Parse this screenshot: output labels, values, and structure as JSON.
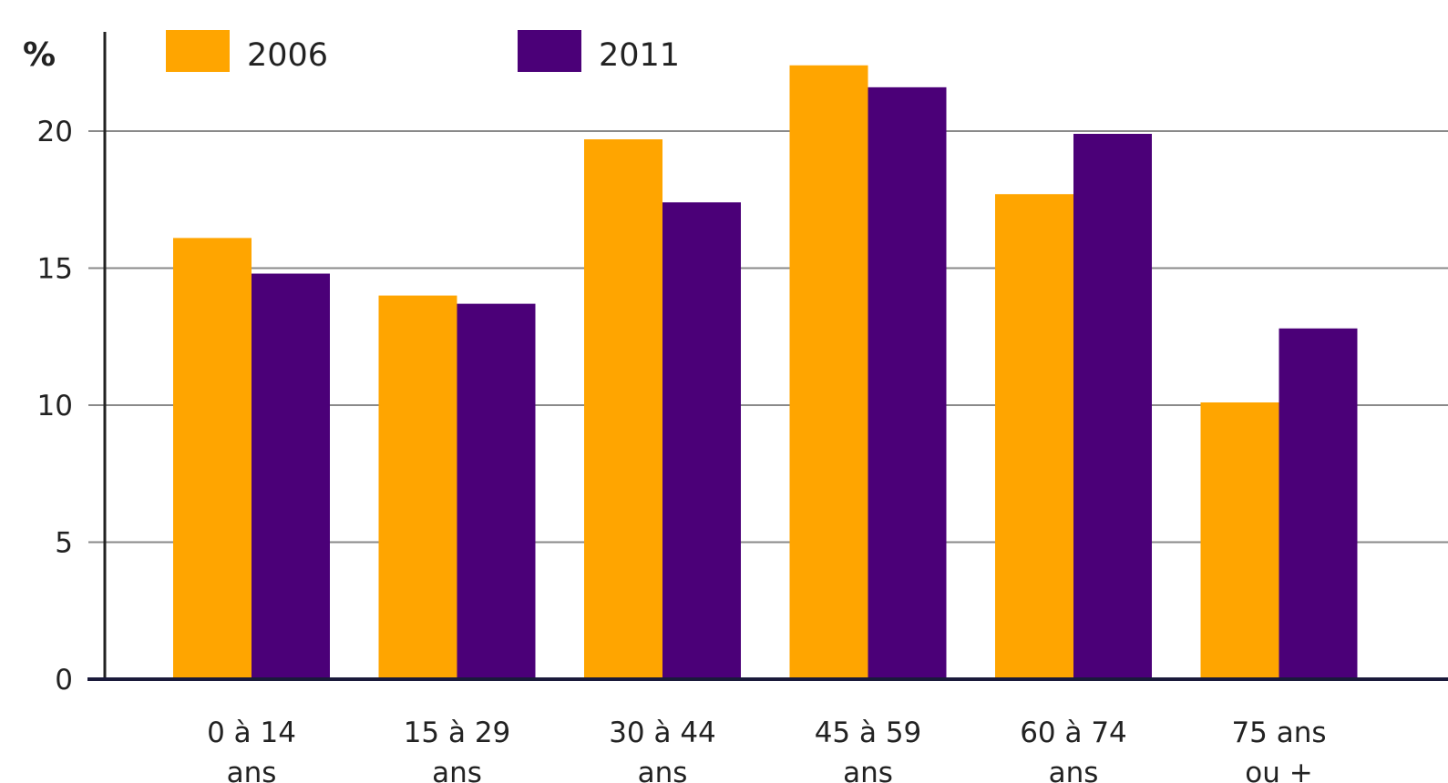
{
  "chart_data": {
    "type": "bar",
    "ylabel": "%",
    "categories": [
      [
        "0 à 14",
        "ans"
      ],
      [
        "15 à 29",
        "ans"
      ],
      [
        "30 à 44",
        "ans"
      ],
      [
        "45 à 59",
        "ans"
      ],
      [
        "60 à 74",
        "ans"
      ],
      [
        "75 ans",
        "ou +"
      ]
    ],
    "series": [
      {
        "name": "2006",
        "color": "#FFA500",
        "values": [
          16.1,
          14.0,
          19.7,
          22.4,
          17.7,
          10.1
        ]
      },
      {
        "name": "2011",
        "color": "#4B0078",
        "values": [
          14.8,
          13.7,
          17.4,
          21.6,
          19.9,
          12.8
        ]
      }
    ],
    "ylim": [
      0,
      23
    ],
    "yticks": [
      0,
      5,
      10,
      15,
      20
    ],
    "grid": true,
    "legend": "top-left"
  }
}
